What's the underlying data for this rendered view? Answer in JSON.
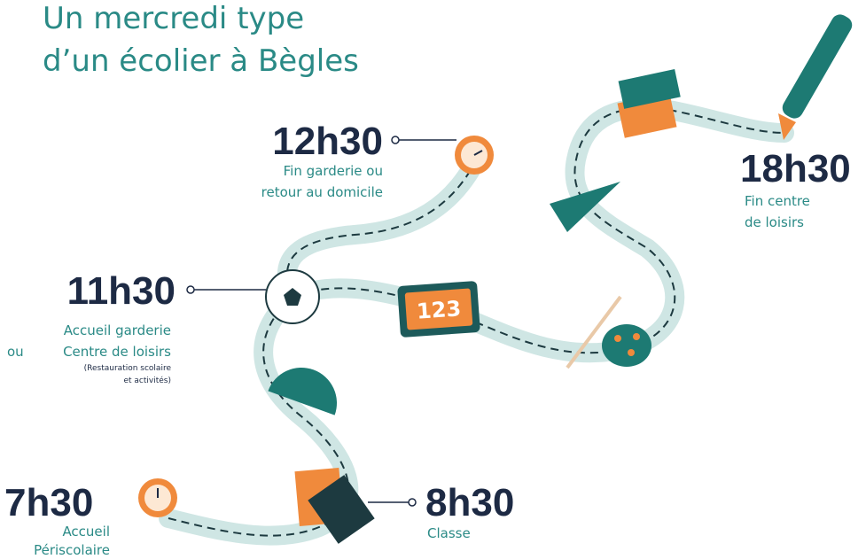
{
  "title": {
    "lines": [
      "Un mercredi type",
      "d’un écolier à Bègles"
    ]
  },
  "steps": [
    {
      "time": "7h30",
      "lines": [
        "Accueil",
        "Périscolaire"
      ]
    },
    {
      "time": "8h30",
      "lines": [
        "Classe"
      ]
    },
    {
      "time": "11h30",
      "lines": [
        "Accueil garderie",
        "Centre de loisirs"
      ],
      "prefix": "ou",
      "note": [
        "(Restauration scolaire",
        "et activités)"
      ]
    },
    {
      "time": "12h30",
      "lines": [
        "Fin garderie ou",
        "retour au domicile"
      ]
    },
    {
      "time": "18h30",
      "lines": [
        "Fin centre",
        "de loisirs"
      ]
    }
  ],
  "board": {
    "label": "123"
  }
}
